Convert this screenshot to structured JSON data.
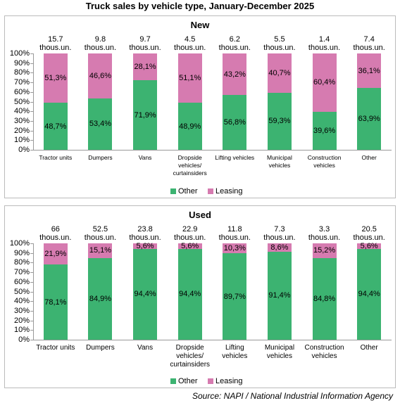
{
  "title": "Truck sales by vehicle type, January-December 2025",
  "source": "Source: NAPI / National Industrial Information Agency",
  "chart_data": [
    {
      "type": "bar",
      "stacked": true,
      "title": "New",
      "categories": [
        "Tractor units",
        "Dumpers",
        "Vans",
        "Dropside vehicles/ curtainsiders",
        "Lifting vehicles",
        "Municipal vehicles",
        "Construction vehicles",
        "Other"
      ],
      "series": [
        {
          "name": "Other",
          "color": "#3cb371",
          "values": [
            48.7,
            53.4,
            71.9,
            48.9,
            56.8,
            59.3,
            39.6,
            63.9
          ],
          "value_labels": [
            "48,7%",
            "53,4%",
            "71,9%",
            "48,9%",
            "56,8%",
            "59,3%",
            "39,6%",
            "63,9%"
          ]
        },
        {
          "name": "Leasing",
          "color": "#d67bb0",
          "values": [
            51.3,
            46.6,
            28.1,
            51.1,
            43.2,
            40.7,
            60.4,
            36.1
          ],
          "value_labels": [
            "51,3%",
            "46,6%",
            "28,1%",
            "51,1%",
            "43,2%",
            "40,7%",
            "60,4%",
            "36,1%"
          ]
        }
      ],
      "totals": {
        "values": [
          15.7,
          9.8,
          9.7,
          4.5,
          6.2,
          5.5,
          1.4,
          7.4
        ],
        "value_labels": [
          "15.7 thous.un.",
          "9.8 thous.un.",
          "9.7 thous.un.",
          "4.5 thous.un.",
          "6.2 thous.un.",
          "5.5 thous.un.",
          "1.4 thous.un.",
          "7.4 thous.un."
        ]
      },
      "ylim": [
        0,
        100
      ],
      "yticks": [
        {
          "value": 0,
          "label": "0%"
        },
        {
          "value": 10,
          "label": "10%"
        },
        {
          "value": 20,
          "label": "20%"
        },
        {
          "value": 30,
          "label": "30%"
        },
        {
          "value": 40,
          "label": "40%"
        },
        {
          "value": 50,
          "label": "50%"
        },
        {
          "value": 60,
          "label": "60%"
        },
        {
          "value": 70,
          "label": "70%"
        },
        {
          "value": 80,
          "label": "80%"
        },
        {
          "value": 90,
          "label": "90%"
        },
        {
          "value": 100,
          "label": "100%"
        }
      ],
      "legend": "bottom"
    },
    {
      "type": "bar",
      "stacked": true,
      "title": "Used",
      "categories": [
        "Tractor units",
        "Dumpers",
        "Vans",
        "Dropside vehicles/ curtainsiders",
        "Lifting vehicles",
        "Municipal vehicles",
        "Construction vehicles",
        "Other"
      ],
      "series": [
        {
          "name": "Other",
          "color": "#3cb371",
          "values": [
            78.1,
            84.9,
            94.4,
            94.4,
            89.7,
            91.4,
            84.8,
            94.4
          ],
          "value_labels": [
            "78,1%",
            "84,9%",
            "94,4%",
            "94,4%",
            "89,7%",
            "91,4%",
            "84,8%",
            "94,4%"
          ]
        },
        {
          "name": "Leasing",
          "color": "#d67bb0",
          "values": [
            21.9,
            15.1,
            5.6,
            5.6,
            10.3,
            8.6,
            15.2,
            5.6
          ],
          "value_labels": [
            "21,9%",
            "15,1%",
            "5,6%",
            "5,6%",
            "10,3%",
            "8,6%",
            "15,2%",
            "5,6%"
          ]
        }
      ],
      "totals": {
        "values": [
          66,
          52.5,
          23.8,
          22.9,
          11.8,
          7.3,
          3.3,
          20.5
        ],
        "value_labels": [
          "66 thous.un.",
          "52.5 thous.un.",
          "23.8 thous.un.",
          "22.9 thous.un.",
          "11.8 thous.un.",
          "7.3 thous.un.",
          "3.3 thous.un.",
          "20.5 thous.un."
        ]
      },
      "ylim": [
        0,
        100
      ],
      "yticks": [
        {
          "value": 0,
          "label": "0%"
        },
        {
          "value": 10,
          "label": "10%"
        },
        {
          "value": 20,
          "label": "20%"
        },
        {
          "value": 30,
          "label": "30%"
        },
        {
          "value": 40,
          "label": "40%"
        },
        {
          "value": 50,
          "label": "50%"
        },
        {
          "value": 60,
          "label": "60%"
        },
        {
          "value": 70,
          "label": "70%"
        },
        {
          "value": 80,
          "label": "80%"
        },
        {
          "value": 90,
          "label": "90%"
        },
        {
          "value": 100,
          "label": "100%"
        }
      ],
      "legend": "bottom"
    }
  ]
}
